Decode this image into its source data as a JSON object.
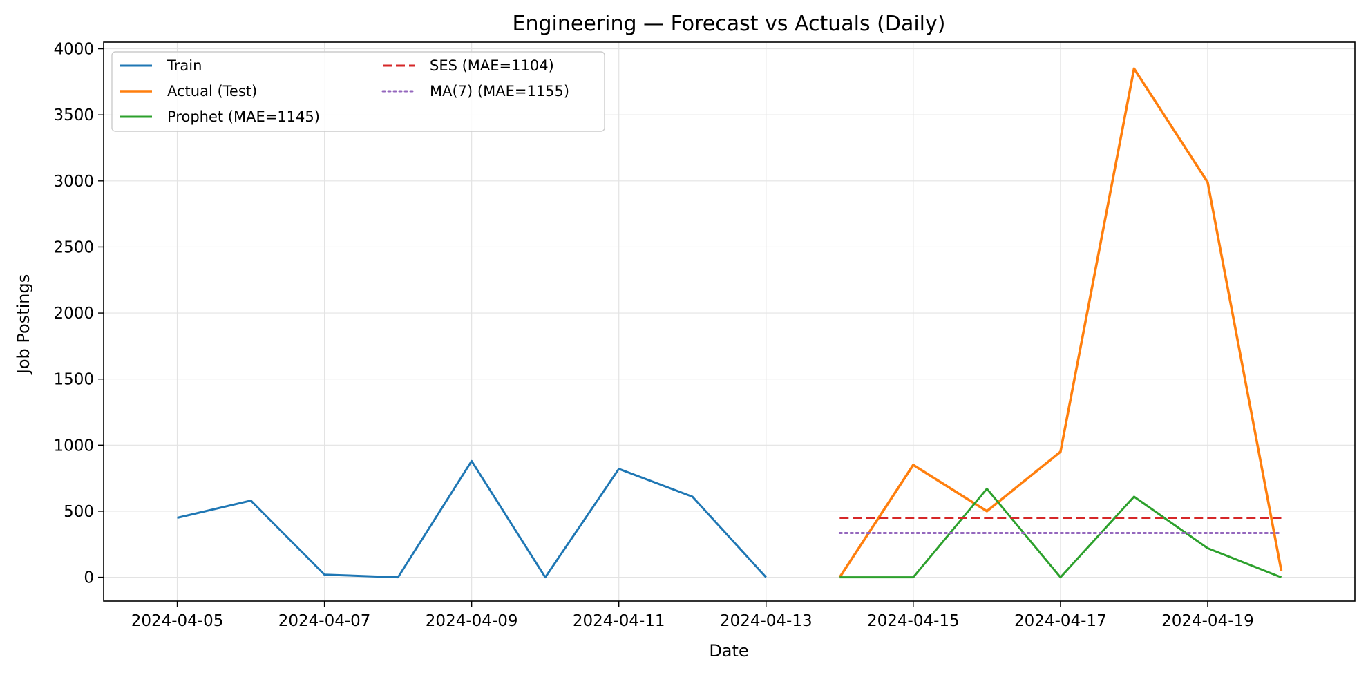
{
  "chart_data": {
    "type": "line",
    "title": "Engineering — Forecast vs Actuals (Daily)",
    "xlabel": "Date",
    "ylabel": "Job Postings",
    "xlim": [
      "2024-04-04",
      "2024-04-21"
    ],
    "ylim": [
      -180,
      4050
    ],
    "x_ticks": [
      "2024-04-05",
      "2024-04-07",
      "2024-04-09",
      "2024-04-11",
      "2024-04-13",
      "2024-04-15",
      "2024-04-17",
      "2024-04-19"
    ],
    "y_ticks": [
      0,
      500,
      1000,
      1500,
      2000,
      2500,
      3000,
      3500,
      4000
    ],
    "grid": true,
    "legend_position": "upper-left",
    "series": [
      {
        "name": "Train",
        "color": "#1f77b4",
        "style": "solid",
        "x": [
          "2024-04-05",
          "2024-04-06",
          "2024-04-07",
          "2024-04-08",
          "2024-04-09",
          "2024-04-10",
          "2024-04-11",
          "2024-04-12",
          "2024-04-13"
        ],
        "values": [
          450,
          580,
          20,
          0,
          880,
          0,
          820,
          610,
          0
        ]
      },
      {
        "name": "Actual (Test)",
        "color": "#ff7f0e",
        "style": "solid",
        "x": [
          "2024-04-14",
          "2024-04-15",
          "2024-04-16",
          "2024-04-17",
          "2024-04-18",
          "2024-04-19",
          "2024-04-20"
        ],
        "values": [
          0,
          850,
          500,
          950,
          3850,
          2990,
          50
        ]
      },
      {
        "name": "Prophet (MAE=1145)",
        "color": "#2ca02c",
        "style": "solid",
        "x": [
          "2024-04-14",
          "2024-04-15",
          "2024-04-16",
          "2024-04-17",
          "2024-04-18",
          "2024-04-19",
          "2024-04-20"
        ],
        "values": [
          0,
          0,
          670,
          0,
          610,
          220,
          0
        ]
      },
      {
        "name": "SES (MAE=1104)",
        "color": "#d62728",
        "style": "dashed",
        "x": [
          "2024-04-14",
          "2024-04-20"
        ],
        "values": [
          450,
          450
        ]
      },
      {
        "name": "MA(7) (MAE=1155)",
        "color": "#9467bd",
        "style": "dotted",
        "x": [
          "2024-04-14",
          "2024-04-20"
        ],
        "values": [
          335,
          335
        ]
      }
    ]
  }
}
